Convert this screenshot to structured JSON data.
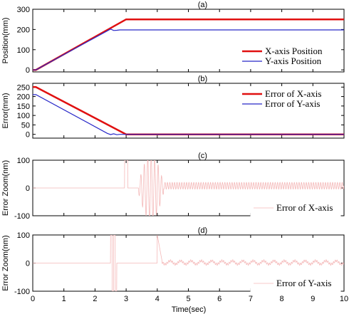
{
  "figure": {
    "xlabel": "Time(sec)"
  },
  "chart_data": [
    {
      "type": "line",
      "title": "(a)",
      "ylabel": "Position(mm)",
      "xlim": [
        0,
        10
      ],
      "ylim": [
        -10,
        300
      ],
      "yticks": [
        0,
        100,
        200,
        300
      ],
      "xticks": [
        0,
        1,
        2,
        3,
        4,
        5,
        6,
        7,
        8,
        9,
        10
      ],
      "show_xticklabels": false,
      "legend": "bottom-right",
      "series": [
        {
          "name": "X-axis Position",
          "color": "#e01010",
          "width": 2.5,
          "x": [
            0,
            0.1,
            3.0,
            10
          ],
          "y": [
            0,
            0,
            250,
            250
          ]
        },
        {
          "name": "Y-axis Position",
          "color": "#2828c8",
          "width": 1.2,
          "x": [
            0,
            0.1,
            2.5,
            2.6,
            2.7,
            2.8,
            10
          ],
          "y": [
            0,
            0,
            202,
            195,
            196,
            198,
            198
          ]
        }
      ]
    },
    {
      "type": "line",
      "title": "(b)",
      "ylabel": "Error(mm)",
      "xlim": [
        0,
        10
      ],
      "ylim": [
        -20,
        270
      ],
      "yticks": [
        0,
        50,
        100,
        150,
        200,
        250
      ],
      "xticks": [
        0,
        1,
        2,
        3,
        4,
        5,
        6,
        7,
        8,
        9,
        10
      ],
      "show_xticklabels": false,
      "legend": "top-right",
      "series": [
        {
          "name": "Error of X-axis",
          "color": "#e01010",
          "width": 2.5,
          "x": [
            0,
            0.1,
            3.0,
            10
          ],
          "y": [
            250,
            250,
            0,
            0
          ]
        },
        {
          "name": "Error of Y-axis",
          "color": "#2828c8",
          "width": 1.2,
          "x": [
            0,
            0.1,
            2.4,
            2.5,
            2.6,
            2.7,
            2.8,
            10
          ],
          "y": [
            210,
            210,
            5,
            -1,
            3,
            -2,
            0,
            0
          ]
        }
      ]
    },
    {
      "type": "line",
      "title": "(c)",
      "ylabel": "Error Zoom(nm)",
      "xlim": [
        0,
        10
      ],
      "ylim": [
        -100,
        100
      ],
      "yticks": [
        -100,
        0,
        100
      ],
      "xticks": [
        0,
        1,
        2,
        3,
        4,
        5,
        6,
        7,
        8,
        9,
        10
      ],
      "show_xticklabels": false,
      "legend": "bottom-right",
      "series": [
        {
          "name": "Error of X-axis",
          "color": "#f4b8b8",
          "width": 0.8
        }
      ]
    },
    {
      "type": "line",
      "title": "(d)",
      "ylabel": "Error Zoom(nm)",
      "xlim": [
        0,
        10
      ],
      "ylim": [
        -100,
        100
      ],
      "yticks": [
        -100,
        0,
        100
      ],
      "xticks": [
        0,
        1,
        2,
        3,
        4,
        5,
        6,
        7,
        8,
        9,
        10
      ],
      "show_xticklabels": true,
      "legend": "bottom-right",
      "series": [
        {
          "name": "Error of Y-axis",
          "color": "#f4b8b8",
          "width": 0.8
        }
      ]
    }
  ]
}
